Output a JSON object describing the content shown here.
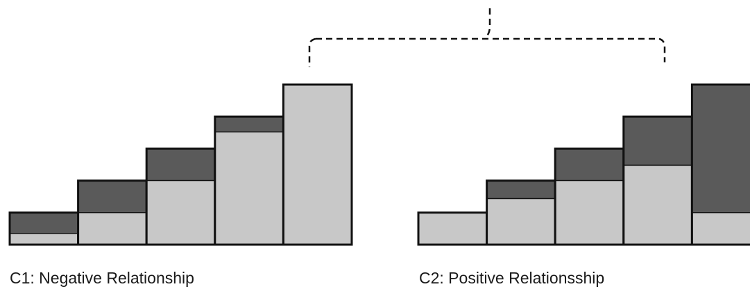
{
  "captions": {
    "c1": "C1: Negative Relationship",
    "c2": "C2: Positive Relationsship"
  },
  "colors": {
    "light": "#c8c8c8",
    "dark": "#5a5a5a",
    "outline": "#111111",
    "bracket": "#111111",
    "background": "#ffffff"
  },
  "panels": [
    {
      "id": "c1",
      "bars": [
        {
          "total": 1,
          "light_share": 0.35
        },
        {
          "total": 2,
          "light_share": 0.5
        },
        {
          "total": 3,
          "light_share": 0.667
        },
        {
          "total": 4,
          "light_share": 0.88
        },
        {
          "total": 5,
          "light_share": 1.0
        }
      ]
    },
    {
      "id": "c2",
      "bars": [
        {
          "total": 1,
          "light_share": 1.0
        },
        {
          "total": 2,
          "light_share": 0.72
        },
        {
          "total": 3,
          "light_share": 0.667
        },
        {
          "total": 4,
          "light_share": 0.62
        },
        {
          "total": 5,
          "light_share": 0.2
        }
      ]
    }
  ]
}
